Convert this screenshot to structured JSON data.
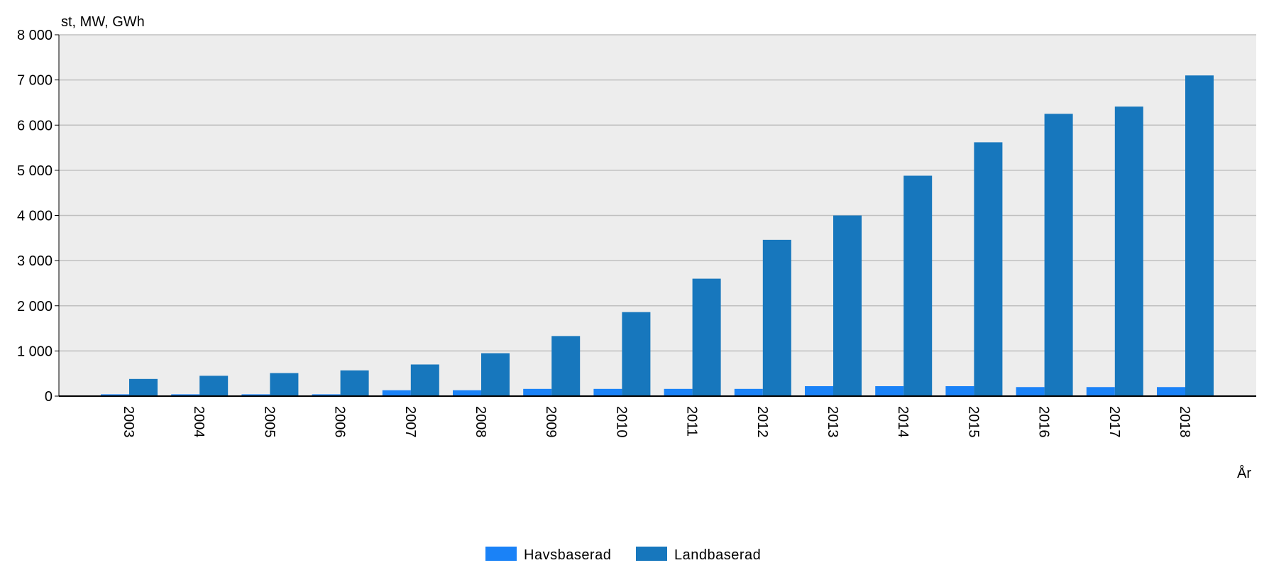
{
  "chart_data": {
    "type": "bar",
    "ylabel": "st, MW, GWh",
    "xlabel": "År",
    "ylim": [
      0,
      8000
    ],
    "yticks": [
      0,
      1000,
      2000,
      3000,
      4000,
      5000,
      6000,
      7000,
      8000
    ],
    "ytick_labels": [
      "0",
      "1 000",
      "2 000",
      "3 000",
      "4 000",
      "5 000",
      "6 000",
      "7 000",
      "8 000"
    ],
    "grid": true,
    "legend_position": "bottom-center",
    "categories": [
      "2003",
      "2004",
      "2005",
      "2006",
      "2007",
      "2008",
      "2009",
      "2010",
      "2011",
      "2012",
      "2013",
      "2014",
      "2015",
      "2016",
      "2017",
      "2018"
    ],
    "series": [
      {
        "name": "Havsbaserad",
        "color": "#1a82f7",
        "values": [
          40,
          40,
          40,
          40,
          130,
          130,
          160,
          160,
          160,
          160,
          220,
          220,
          220,
          200,
          200,
          200
        ]
      },
      {
        "name": "Landbaserad",
        "color": "#1777bd",
        "values": [
          380,
          450,
          510,
          570,
          700,
          950,
          1330,
          1860,
          2600,
          3460,
          4000,
          4880,
          5620,
          6250,
          6410,
          7100
        ]
      }
    ]
  },
  "colors": {
    "plot_background": "#ededed",
    "grid": "#c0c0c0",
    "axis": "#000000"
  }
}
